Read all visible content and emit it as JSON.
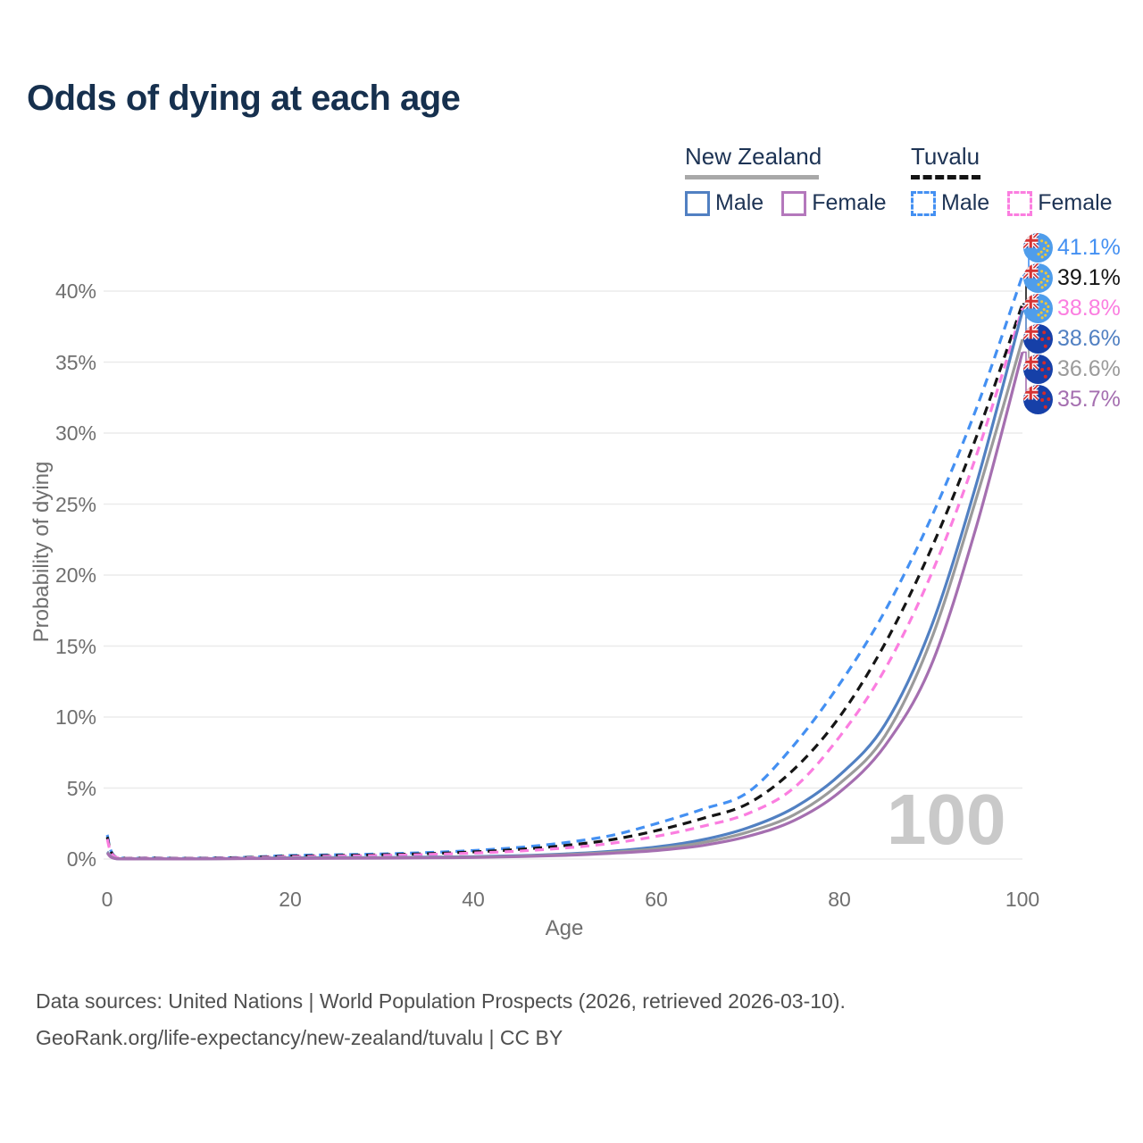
{
  "title": "Odds of dying at each age",
  "legend": {
    "groups": [
      {
        "name": "New Zealand",
        "line_style": "solid",
        "underline_color": "#a8a8a8",
        "items": [
          {
            "label": "Male",
            "color": "#5180c2"
          },
          {
            "label": "Female",
            "color": "#b478bc"
          }
        ]
      },
      {
        "name": "Tuvalu",
        "line_style": "dashed",
        "underline_color": "#141414",
        "items": [
          {
            "label": "Male",
            "color": "#4490f2"
          },
          {
            "label": "Female",
            "color": "#fb7ee0"
          }
        ]
      }
    ]
  },
  "axes": {
    "x_label": "Age",
    "y_label": "Probability of dying",
    "x_ticks": [
      0,
      20,
      40,
      60,
      80,
      100
    ],
    "y_ticks": [
      0,
      5,
      10,
      15,
      20,
      25,
      30,
      35,
      40
    ],
    "y_tick_suffix": "%"
  },
  "watermark_age": "100",
  "chart_data": {
    "type": "line",
    "title": "Odds of dying at each age",
    "xlabel": "Age",
    "ylabel": "Probability of dying",
    "xlim": [
      0,
      100
    ],
    "ylim": [
      0,
      43
    ],
    "y_unit": "percent",
    "grid": true,
    "legend_position": "top-right",
    "x": [
      0,
      1,
      5,
      10,
      15,
      20,
      25,
      30,
      35,
      40,
      45,
      50,
      55,
      60,
      65,
      70,
      75,
      80,
      85,
      90,
      95,
      100
    ],
    "series": [
      {
        "name": "Tuvalu Male",
        "country": "Tuvalu",
        "sex": "Male",
        "style": "dashed",
        "color": "#4490f2",
        "end_label": "41.1%",
        "values": [
          1.7,
          0.12,
          0.07,
          0.06,
          0.12,
          0.25,
          0.3,
          0.36,
          0.46,
          0.6,
          0.82,
          1.15,
          1.65,
          2.5,
          3.5,
          4.7,
          8.0,
          12.3,
          17.5,
          24.0,
          31.8,
          41.1
        ]
      },
      {
        "name": "Tuvalu",
        "country": "Tuvalu",
        "sex": "Both",
        "style": "dashed",
        "color": "#151515",
        "end_label": "39.1%",
        "values": [
          1.55,
          0.11,
          0.06,
          0.05,
          0.1,
          0.2,
          0.25,
          0.3,
          0.38,
          0.5,
          0.68,
          0.95,
          1.35,
          2.0,
          2.85,
          3.9,
          6.3,
          10.0,
          15.2,
          21.8,
          29.8,
          39.1
        ]
      },
      {
        "name": "Tuvalu Female",
        "country": "Tuvalu",
        "sex": "Female",
        "style": "dashed",
        "color": "#fb7ee0",
        "end_label": "38.8%",
        "values": [
          1.4,
          0.1,
          0.05,
          0.04,
          0.08,
          0.16,
          0.2,
          0.25,
          0.32,
          0.42,
          0.56,
          0.78,
          1.1,
          1.6,
          2.3,
          3.2,
          5.0,
          8.6,
          13.4,
          20.0,
          28.5,
          38.8
        ]
      },
      {
        "name": "New Zealand Male",
        "country": "New Zealand",
        "sex": "Male",
        "style": "solid",
        "color": "#5180c2",
        "end_label": "38.6%",
        "values": [
          0.5,
          0.03,
          0.01,
          0.01,
          0.05,
          0.09,
          0.1,
          0.11,
          0.13,
          0.17,
          0.24,
          0.36,
          0.55,
          0.85,
          1.35,
          2.2,
          3.6,
          5.9,
          9.5,
          16.3,
          26.5,
          38.6
        ]
      },
      {
        "name": "New Zealand",
        "country": "New Zealand",
        "sex": "Both",
        "style": "solid",
        "color": "#9b9b9b",
        "end_label": "36.6%",
        "values": [
          0.46,
          0.03,
          0.01,
          0.01,
          0.04,
          0.07,
          0.08,
          0.09,
          0.11,
          0.14,
          0.2,
          0.31,
          0.47,
          0.72,
          1.15,
          1.9,
          3.1,
          5.3,
          8.7,
          15.4,
          25.5,
          36.6
        ]
      },
      {
        "name": "New Zealand Female",
        "country": "New Zealand",
        "sex": "Female",
        "style": "solid",
        "color": "#a56fb0",
        "end_label": "35.7%",
        "values": [
          0.42,
          0.02,
          0.01,
          0.01,
          0.03,
          0.04,
          0.05,
          0.06,
          0.08,
          0.11,
          0.17,
          0.26,
          0.4,
          0.6,
          0.95,
          1.6,
          2.7,
          4.7,
          8.0,
          13.6,
          23.5,
          35.7
        ]
      }
    ]
  },
  "footer": {
    "line1": "Data sources: United Nations | World Population Prospects (2026, retrieved 2026-03-10).",
    "line2": "GeoRank.org/life-expectancy/new-zealand/tuvalu | CC BY"
  }
}
